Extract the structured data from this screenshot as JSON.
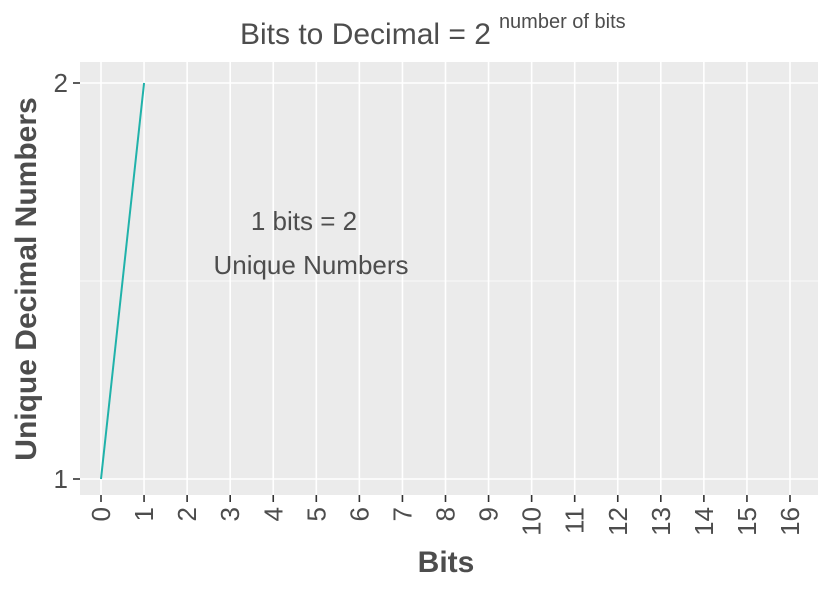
{
  "chart_data": {
    "type": "line",
    "title": "Bits to Decimal = 2",
    "title_superscript": "number of bits",
    "xlabel": "Bits",
    "ylabel": "Unique Decimal Numbers",
    "x_ticks": [
      "0",
      "1",
      "2",
      "3",
      "4",
      "5",
      "6",
      "7",
      "8",
      "9",
      "10",
      "11",
      "12",
      "13",
      "14",
      "15",
      "16"
    ],
    "y_ticks": [
      "1",
      "2"
    ],
    "xlim": [
      0,
      16
    ],
    "ylim": [
      1,
      2
    ],
    "grid": true,
    "series": [
      {
        "x": [
          0,
          1
        ],
        "y": [
          1,
          2
        ],
        "color": "#20b2aa"
      }
    ],
    "annotation": {
      "line1": "1 bits =  2",
      "line2": "Unique Numbers"
    }
  },
  "colors": {
    "panel_background": "#ebebeb",
    "grid_line": "#ffffff",
    "text": "#4d4d4d",
    "series": "#20b2aa"
  }
}
